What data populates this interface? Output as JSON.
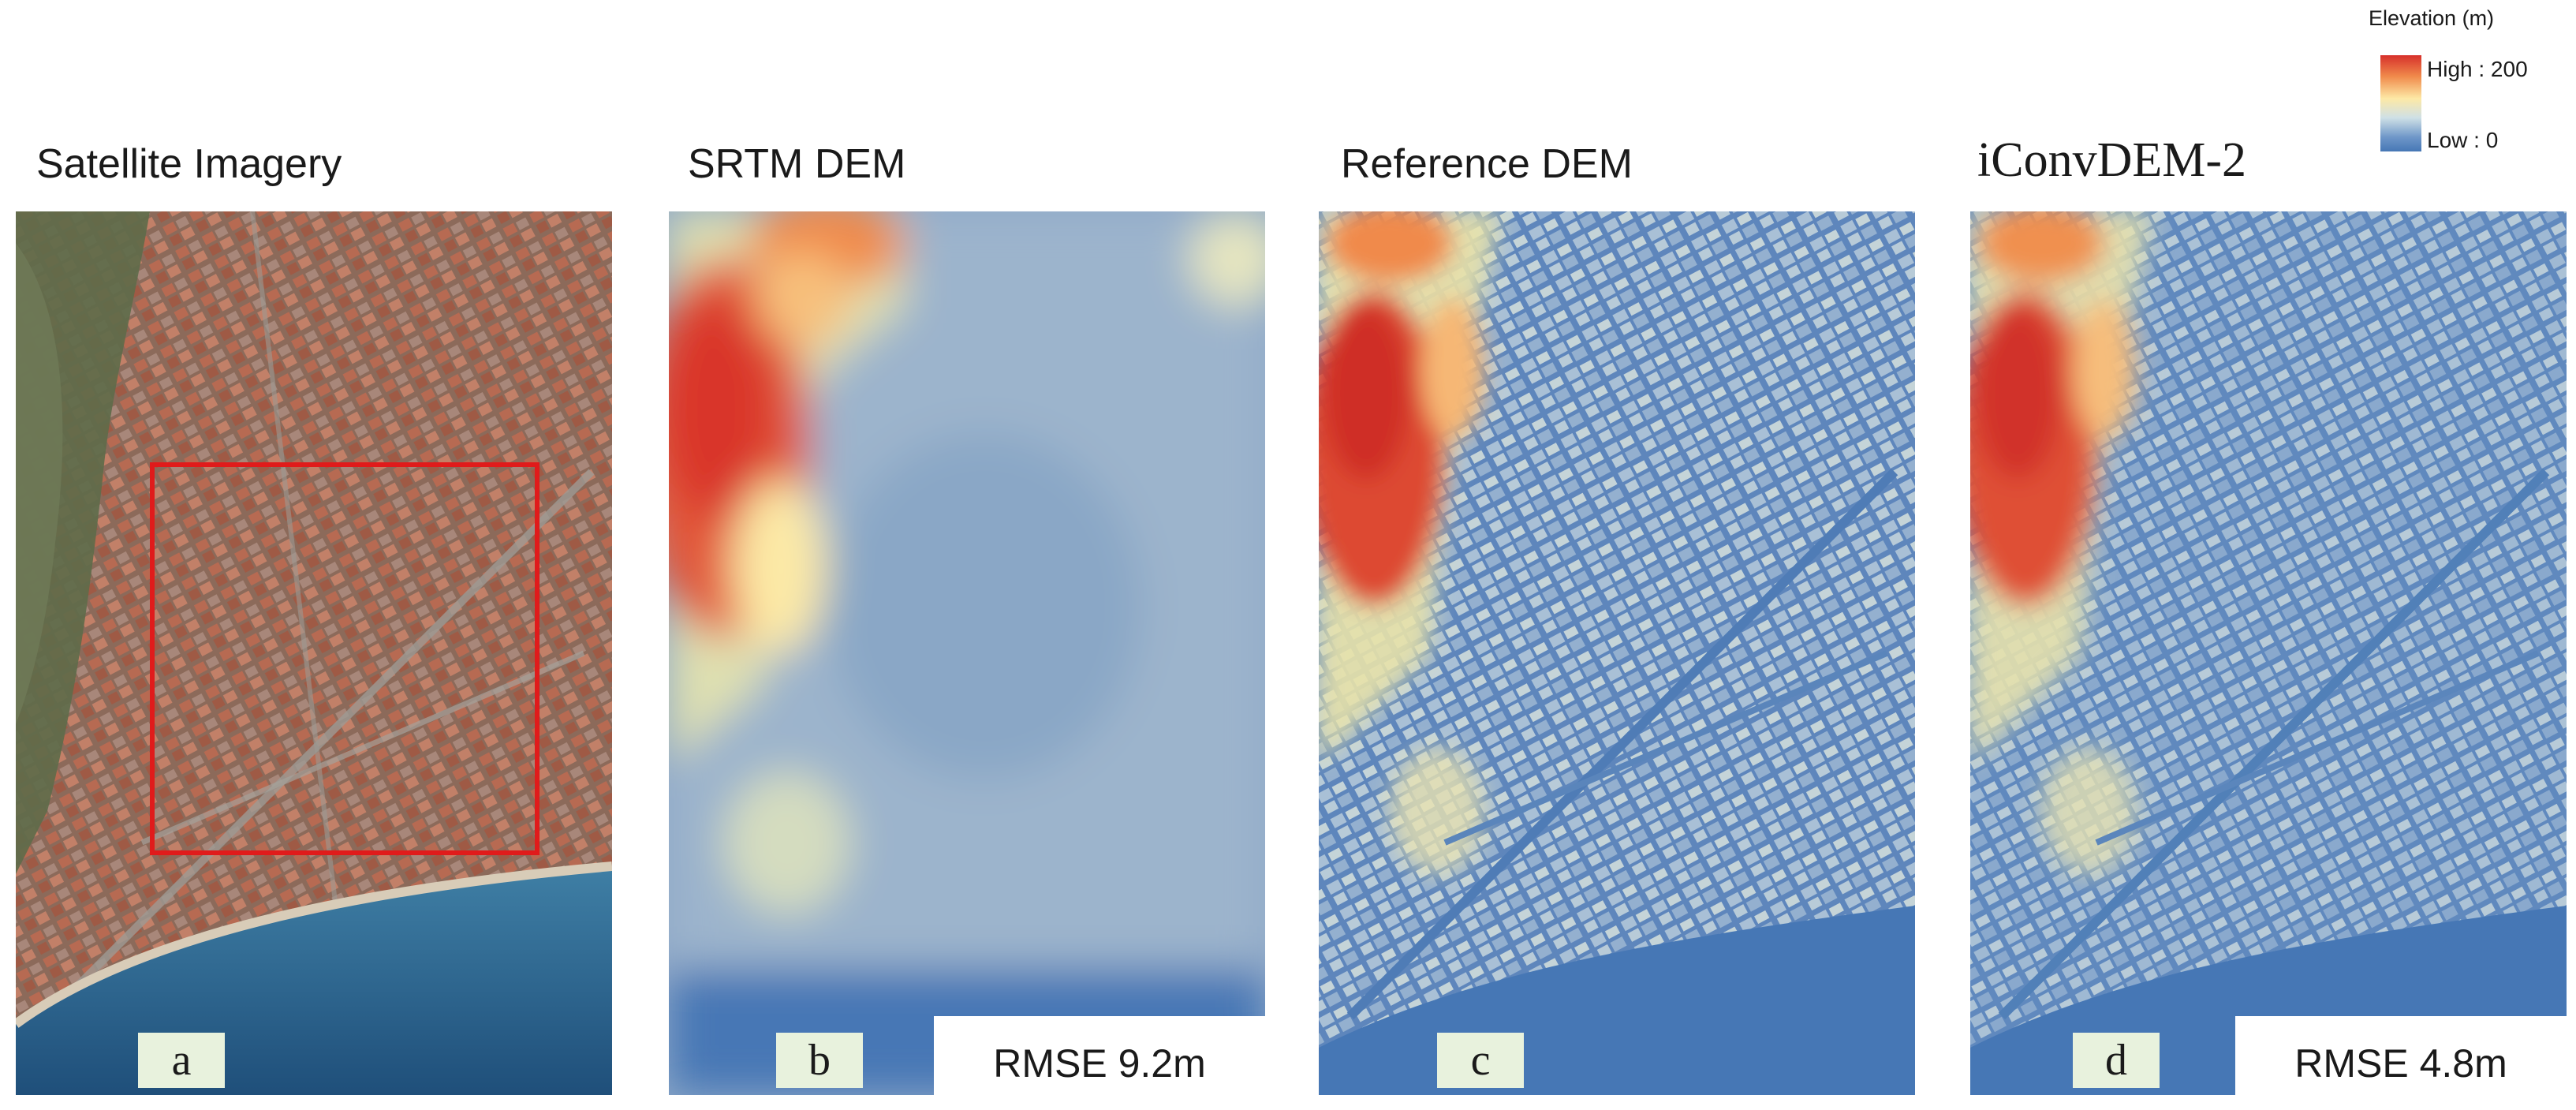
{
  "panels": [
    {
      "id": "a",
      "title": "Satellite Imagery",
      "letter": "a",
      "rmse": ""
    },
    {
      "id": "b",
      "title": "SRTM DEM",
      "letter": "b",
      "rmse": "RMSE 9.2m"
    },
    {
      "id": "c",
      "title": "Reference DEM",
      "letter": "c",
      "rmse": ""
    },
    {
      "id": "d",
      "title": "iConvDEM-2",
      "letter": "d",
      "rmse": "RMSE 4.8m"
    }
  ],
  "legend": {
    "title": "Elevation (m)",
    "high": "High : 200",
    "low": "Low : 0",
    "colors": {
      "high": "#d7302b",
      "mid": "#fde9a6",
      "low": "#4677b5"
    }
  },
  "highlight_box_color": "#e01b1b"
}
